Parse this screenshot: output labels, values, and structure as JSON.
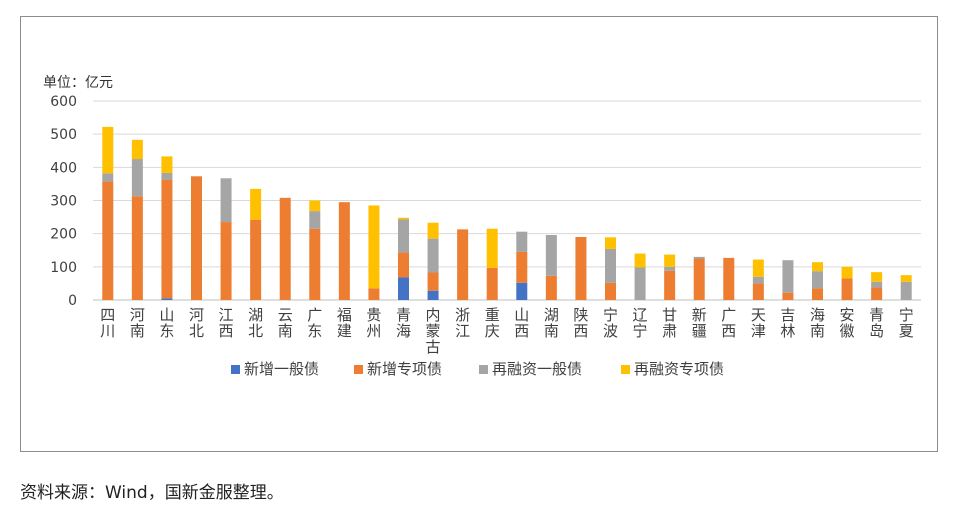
{
  "chart_data": {
    "type": "bar",
    "stacked": true,
    "unit_label": "单位：亿元",
    "ylim": [
      0,
      600
    ],
    "yticks": [
      0,
      100,
      200,
      300,
      400,
      500,
      600
    ],
    "grid": true,
    "legend_position": "bottom",
    "categories": [
      "四川",
      "河南",
      "山东",
      "河北",
      "江西",
      "湖北",
      "云南",
      "广东",
      "福建",
      "贵州",
      "青海",
      "内蒙古",
      "浙江",
      "重庆",
      "山西",
      "湖南",
      "陕西",
      "宁波",
      "辽宁",
      "甘肃",
      "新疆",
      "广西",
      "天津",
      "吉林",
      "海南",
      "安徽",
      "青岛",
      "宁夏"
    ],
    "series": [
      {
        "name": "新增一般债",
        "color": "#4472c4",
        "values": [
          0,
          0,
          5,
          0,
          0,
          0,
          0,
          0,
          0,
          0,
          68,
          28,
          0,
          0,
          52,
          0,
          0,
          0,
          0,
          0,
          0,
          0,
          0,
          0,
          0,
          0,
          0,
          0
        ]
      },
      {
        "name": "新增专项债",
        "color": "#ed7d31",
        "values": [
          357,
          313,
          358,
          373,
          235,
          242,
          308,
          215,
          295,
          35,
          75,
          55,
          213,
          97,
          93,
          73,
          190,
          52,
          0,
          88,
          125,
          127,
          50,
          22,
          35,
          65,
          38,
          0
        ]
      },
      {
        "name": "再融资一般债",
        "color": "#a5a5a5",
        "values": [
          25,
          112,
          20,
          0,
          132,
          0,
          0,
          53,
          0,
          0,
          100,
          102,
          0,
          0,
          61,
          123,
          0,
          102,
          98,
          12,
          5,
          0,
          20,
          98,
          52,
          0,
          17,
          55
        ]
      },
      {
        "name": "再融资专项债",
        "color": "#ffc000",
        "values": [
          140,
          58,
          50,
          0,
          0,
          93,
          0,
          32,
          0,
          250,
          5,
          48,
          0,
          118,
          0,
          0,
          0,
          35,
          42,
          37,
          0,
          0,
          52,
          0,
          27,
          35,
          29,
          20
        ]
      }
    ]
  },
  "source": "资料来源：Wind，国新金服整理。"
}
